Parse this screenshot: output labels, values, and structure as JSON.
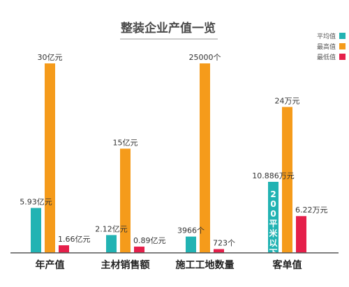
{
  "chart_data": {
    "type": "bar",
    "title": "整装企业产值一览",
    "categories": [
      "年产值",
      "主材销售额",
      "施工工地数量",
      "客单值"
    ],
    "series": [
      {
        "name": "平均值",
        "color": "#22b3b3",
        "labels": [
          "5.93亿元",
          "2.12亿元",
          "3966个",
          "10.886万元"
        ],
        "fractions": [
          0.237,
          0.094,
          0.086,
          0.375
        ]
      },
      {
        "name": "最高值",
        "color": "#f59b1b",
        "labels": [
          "30亿元",
          "15亿元",
          "25000个",
          "24万元"
        ],
        "fractions": [
          1.0,
          0.55,
          1.0,
          0.77
        ]
      },
      {
        "name": "最低值",
        "color": "#e51f4a",
        "labels": [
          "1.66亿元",
          "0.89亿元",
          "723个",
          "6.22万元"
        ],
        "fractions": [
          0.04,
          0.033,
          0.02,
          0.194
        ]
      }
    ],
    "annotation": {
      "series": 0,
      "category": 3,
      "text": "200平米以下"
    },
    "legend_placement": "top-right",
    "grid": false
  }
}
